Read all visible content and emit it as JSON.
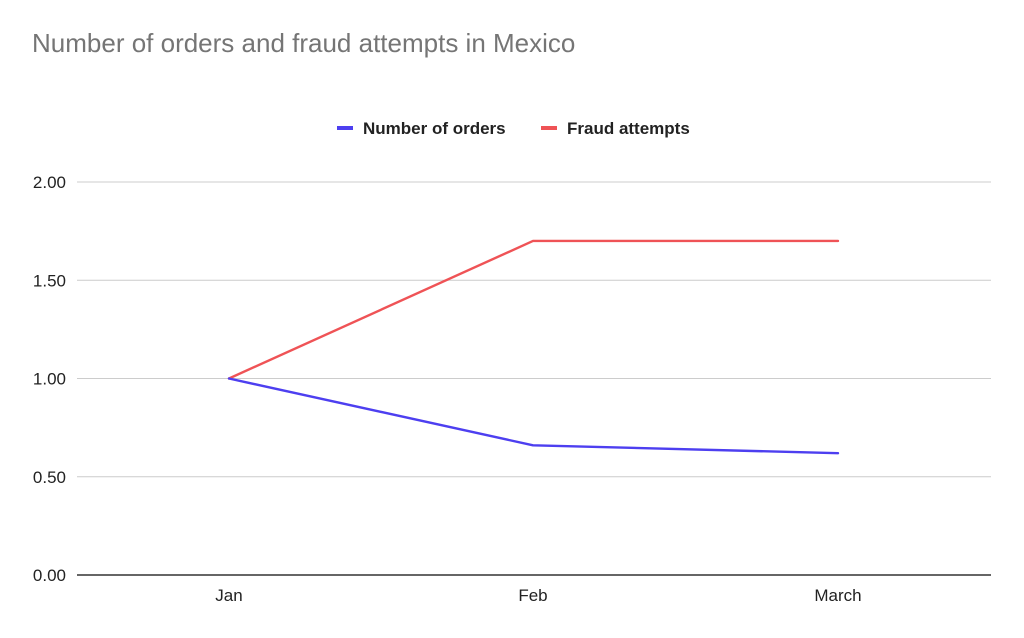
{
  "chart_data": {
    "type": "line",
    "title": "Number of orders and fraud attempts in Mexico",
    "xlabel": "",
    "ylabel": "",
    "categories": [
      "Jan",
      "Feb",
      "March"
    ],
    "series": [
      {
        "name": "Number of orders",
        "color": "#4d3ff0",
        "values": [
          1.0,
          0.66,
          0.62
        ]
      },
      {
        "name": "Fraud attempts",
        "color": "#ef5356",
        "values": [
          1.0,
          1.7,
          1.7
        ]
      }
    ],
    "ylim": [
      0,
      2
    ],
    "yticks": [
      0,
      0.5,
      1,
      1.5,
      2
    ],
    "ytick_labels": [
      "0.00",
      "0.50",
      "1.00",
      "1.50",
      "2.00"
    ],
    "grid": true,
    "legend_position": "top-center"
  },
  "colors": {
    "grid": "#cccccc",
    "axis": "#333333",
    "title": "#757575",
    "text": "#222222"
  }
}
